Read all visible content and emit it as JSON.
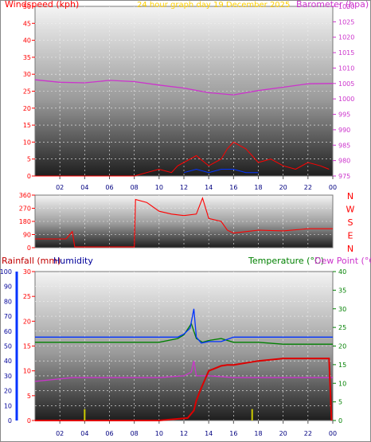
{
  "colors": {
    "red": "#ff0000",
    "darkred": "#c00000",
    "magenta": "#cc33cc",
    "yellow": "#ffd000",
    "navy": "#000099",
    "green": "#008000",
    "blue": "#0033ff",
    "yellowgreen": "#cccc00",
    "grid": "#f0f0f0",
    "tick": "#000080"
  },
  "chart_data": [
    {
      "type": "line",
      "title": "24 hour graph day 19 December 2025",
      "left_axis_label": "Windspeed (kph)",
      "right_axis_label": "Barometer (hpa)",
      "x_ticks": [
        "02",
        "04",
        "06",
        "08",
        "10",
        "12",
        "14",
        "16",
        "18",
        "20",
        "22",
        "00"
      ],
      "y_left_ticks": [
        "0",
        "5",
        "10",
        "15",
        "20",
        "25",
        "30",
        "35",
        "40",
        "45",
        "50"
      ],
      "y_left_range": [
        0,
        50
      ],
      "y_right_ticks": [
        "975",
        "980",
        "985",
        "990",
        "995",
        "1000",
        "1005",
        "1010",
        "1015",
        "1020",
        "1025",
        "1030"
      ],
      "y_right_range": [
        975,
        1030
      ],
      "x_range_hours": [
        0,
        24
      ],
      "series": [
        {
          "name": "Barometer",
          "x": [
            0,
            2,
            4,
            6,
            8,
            10,
            12,
            14,
            16,
            18,
            20,
            22,
            24
          ],
          "values": [
            1006.2,
            1005.4,
            1005.2,
            1006.0,
            1005.6,
            1004.5,
            1003.5,
            1002.0,
            1001.3,
            1002.7,
            1003.8,
            1004.9,
            1005.0
          ]
        },
        {
          "name": "Windspeed",
          "x": [
            0,
            8,
            9,
            10,
            11,
            11.5,
            12,
            13,
            14,
            15,
            15.5,
            16,
            16.5,
            17,
            18,
            19,
            20,
            21,
            22,
            23,
            23.7
          ],
          "values": [
            0,
            0,
            1,
            2,
            1,
            3,
            4,
            6,
            3,
            5,
            8,
            10,
            9,
            8,
            4,
            5,
            3,
            2,
            4,
            3,
            2
          ]
        },
        {
          "name": "Gust",
          "x": [
            12,
            13,
            14,
            15,
            16,
            17,
            18
          ],
          "values": [
            1,
            2,
            1,
            2,
            2,
            1,
            1
          ]
        }
      ]
    },
    {
      "type": "line",
      "title": "",
      "left_axis_label": "",
      "y_left_ticks": [
        "0",
        "90",
        "180",
        "270",
        "360"
      ],
      "y_left_range": [
        0,
        360
      ],
      "right_labels": [
        "N",
        "W",
        "S",
        "E",
        "N"
      ],
      "series": [
        {
          "name": "Wind Direction",
          "x": [
            0,
            2.5,
            3,
            3.2,
            6.5,
            8.0,
            8.1,
            9,
            10,
            11,
            12,
            13,
            13.5,
            14,
            15,
            15.5,
            16,
            17,
            18,
            20,
            22,
            24
          ],
          "values": [
            60,
            60,
            110,
            5,
            5,
            5,
            330,
            310,
            250,
            230,
            220,
            230,
            340,
            200,
            180,
            120,
            100,
            110,
            120,
            115,
            130,
            130
          ]
        }
      ]
    },
    {
      "type": "line",
      "title": "",
      "left_axis_label": "Rainfall (mm)",
      "left_axis_label_2": "Humidity",
      "right_axis_label": "Temperature (°C)",
      "right_axis_label_2": "Dew Point (°C)",
      "y_left_ticks": [
        "0",
        "10",
        "20",
        "30",
        "40",
        "50",
        "60",
        "70",
        "80",
        "90",
        "100"
      ],
      "y_left_range": [
        0,
        100
      ],
      "y_rain_ticks": [
        "0",
        "5",
        "10",
        "15",
        "20",
        "25",
        "30"
      ],
      "y_rain_range": [
        0,
        30
      ],
      "y_right_ticks": [
        "0",
        "5",
        "10",
        "15",
        "20",
        "25",
        "30",
        "35",
        "40"
      ],
      "y_right_range": [
        0,
        40
      ],
      "x_ticks": [
        "02",
        "04",
        "06",
        "08",
        "10",
        "12",
        "14",
        "16",
        "18",
        "20",
        "22",
        "00"
      ],
      "series": [
        {
          "name": "Humidity",
          "x": [
            0,
            10,
            11.5,
            12,
            12.5,
            12.8,
            13,
            13.4,
            14,
            15,
            16,
            20,
            24
          ],
          "values": [
            56,
            56,
            56,
            58,
            62,
            75,
            56,
            52,
            53,
            53,
            56,
            56,
            56
          ]
        },
        {
          "name": "Temperature",
          "x": [
            0,
            10,
            11.5,
            12,
            12.6,
            13,
            13.5,
            14,
            15,
            16,
            18,
            20,
            24
          ],
          "values": [
            21,
            21,
            22,
            23,
            26,
            22,
            21,
            21.5,
            22,
            21,
            21,
            20.5,
            20.5
          ]
        },
        {
          "name": "Dew Point",
          "x": [
            0,
            3,
            10,
            12,
            12.6,
            12.8,
            13,
            14,
            16,
            20,
            24
          ],
          "values": [
            10.5,
            11.5,
            11.5,
            12,
            13,
            16,
            12,
            12,
            11.5,
            11.5,
            11.5
          ]
        },
        {
          "name": "Rainfall",
          "x": [
            0,
            10,
            12.3,
            12.8,
            13,
            13.3,
            14,
            15,
            15.5,
            16,
            18,
            20,
            23.7,
            23.9
          ],
          "values": [
            0,
            0,
            0.5,
            2,
            4,
            6,
            10,
            11,
            11.2,
            11.2,
            12,
            12.5,
            12.5,
            0
          ]
        },
        {
          "name": "Rain rate",
          "x": [
            4,
            17.5
          ],
          "values": [
            2.3,
            2.3
          ]
        }
      ]
    }
  ]
}
